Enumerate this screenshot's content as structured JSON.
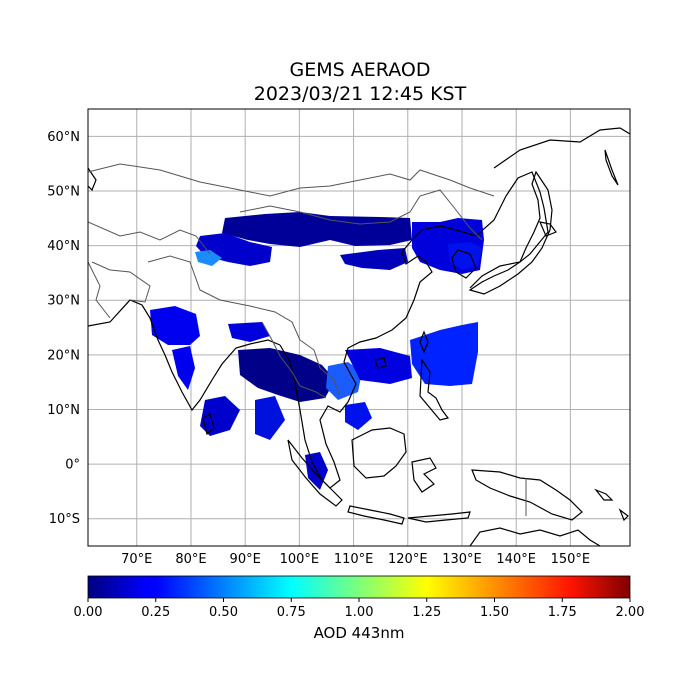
{
  "title": {
    "line1": "GEMS AERAOD",
    "line2": "2023/03/21 12:45 KST"
  },
  "map": {
    "lon_range": [
      61,
      161
    ],
    "lat_range": [
      -15,
      65
    ],
    "lat_ticks": [
      {
        "value": 60,
        "label": "60°N"
      },
      {
        "value": 50,
        "label": "50°N"
      },
      {
        "value": 40,
        "label": "40°N"
      },
      {
        "value": 30,
        "label": "30°N"
      },
      {
        "value": 20,
        "label": "20°N"
      },
      {
        "value": 10,
        "label": "10°N"
      },
      {
        "value": 0,
        "label": "0°"
      },
      {
        "value": -10,
        "label": "10°S"
      }
    ],
    "lon_ticks": [
      {
        "value": 70,
        "label": "70°E"
      },
      {
        "value": 80,
        "label": "80°E"
      },
      {
        "value": 90,
        "label": "90°E"
      },
      {
        "value": 100,
        "label": "100°E"
      },
      {
        "value": 110,
        "label": "110°E"
      },
      {
        "value": 120,
        "label": "120°E"
      },
      {
        "value": 130,
        "label": "130°E"
      },
      {
        "value": 140,
        "label": "140°E"
      },
      {
        "value": 150,
        "label": "150°E"
      }
    ],
    "grid": true
  },
  "colorbar": {
    "label": "AOD 443nm",
    "colormap": "jet",
    "range": [
      0,
      2
    ],
    "ticks": [
      "0.00",
      "0.25",
      "0.50",
      "0.75",
      "1.00",
      "1.25",
      "1.50",
      "1.75",
      "2.00"
    ]
  }
}
